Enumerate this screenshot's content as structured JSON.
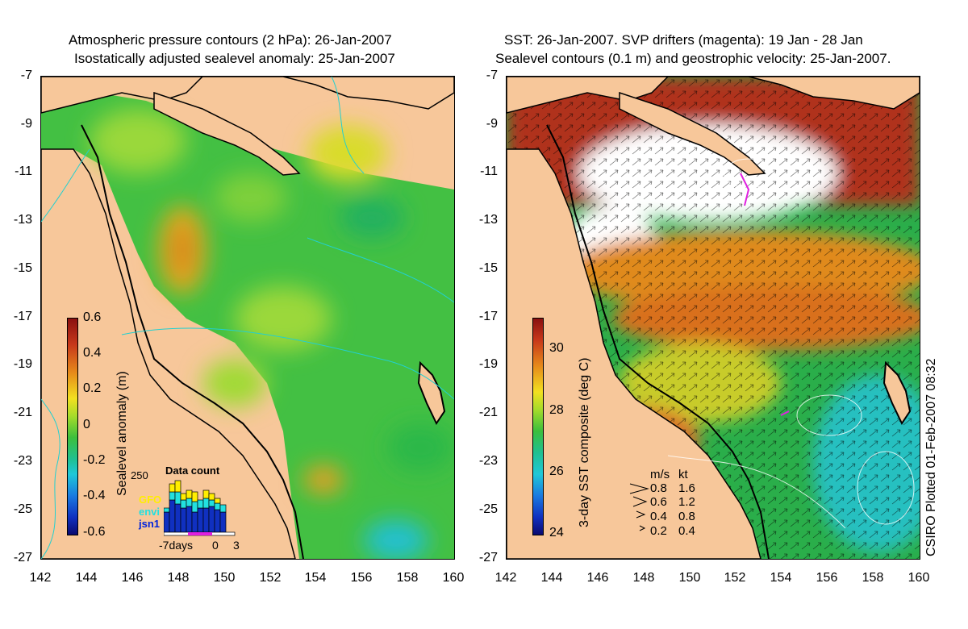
{
  "left_panel": {
    "title_line1": "Atmospheric pressure contours (2 hPa): 26-Jan-2007",
    "title_line2": "Isostatically adjusted sealevel anomaly: 25-Jan-2007",
    "colorbar_label": "Sealevel anomaly (m)",
    "colorbar_ticks": [
      "0.6",
      "0.4",
      "0.2",
      "0",
      "-0.2",
      "-0.4",
      "-0.6"
    ],
    "inset": {
      "title": "Data count",
      "ymax": "250",
      "satellites": [
        "GFO",
        "envi",
        "jsn1"
      ],
      "satellite_colors": [
        "#ffee00",
        "#22e0e0",
        "#0022dd"
      ],
      "xticks": [
        "-7days",
        "0",
        "3"
      ]
    }
  },
  "right_panel": {
    "title_line1": "SST: 26-Jan-2007. SVP drifters (magenta): 19 Jan - 28 Jan",
    "title_line2": "Sealevel contours (0.1 m) and geostrophic velocity: 25-Jan-2007.",
    "colorbar_label": "3-day SST composite (deg C)",
    "colorbar_ticks": [
      "30",
      "28",
      "26",
      "24"
    ],
    "velocity_key": {
      "header_ms": "m/s",
      "header_kt": "kt",
      "rows": [
        {
          "ms": "0.8",
          "kt": "1.6"
        },
        {
          "ms": "0.6",
          "kt": "1.2"
        },
        {
          "ms": "0.4",
          "kt": "0.8"
        },
        {
          "ms": "0.2",
          "kt": "0.4"
        }
      ]
    },
    "plot_note": "CSIRO Plotted 01-Feb-2007 08:32"
  },
  "axes": {
    "lat_ticks": [
      "-7",
      "-9",
      "-11",
      "-13",
      "-15",
      "-17",
      "-19",
      "-21",
      "-23",
      "-25",
      "-27"
    ],
    "lon_ticks": [
      "142",
      "144",
      "146",
      "148",
      "150",
      "152",
      "154",
      "156",
      "158",
      "160"
    ]
  }
}
